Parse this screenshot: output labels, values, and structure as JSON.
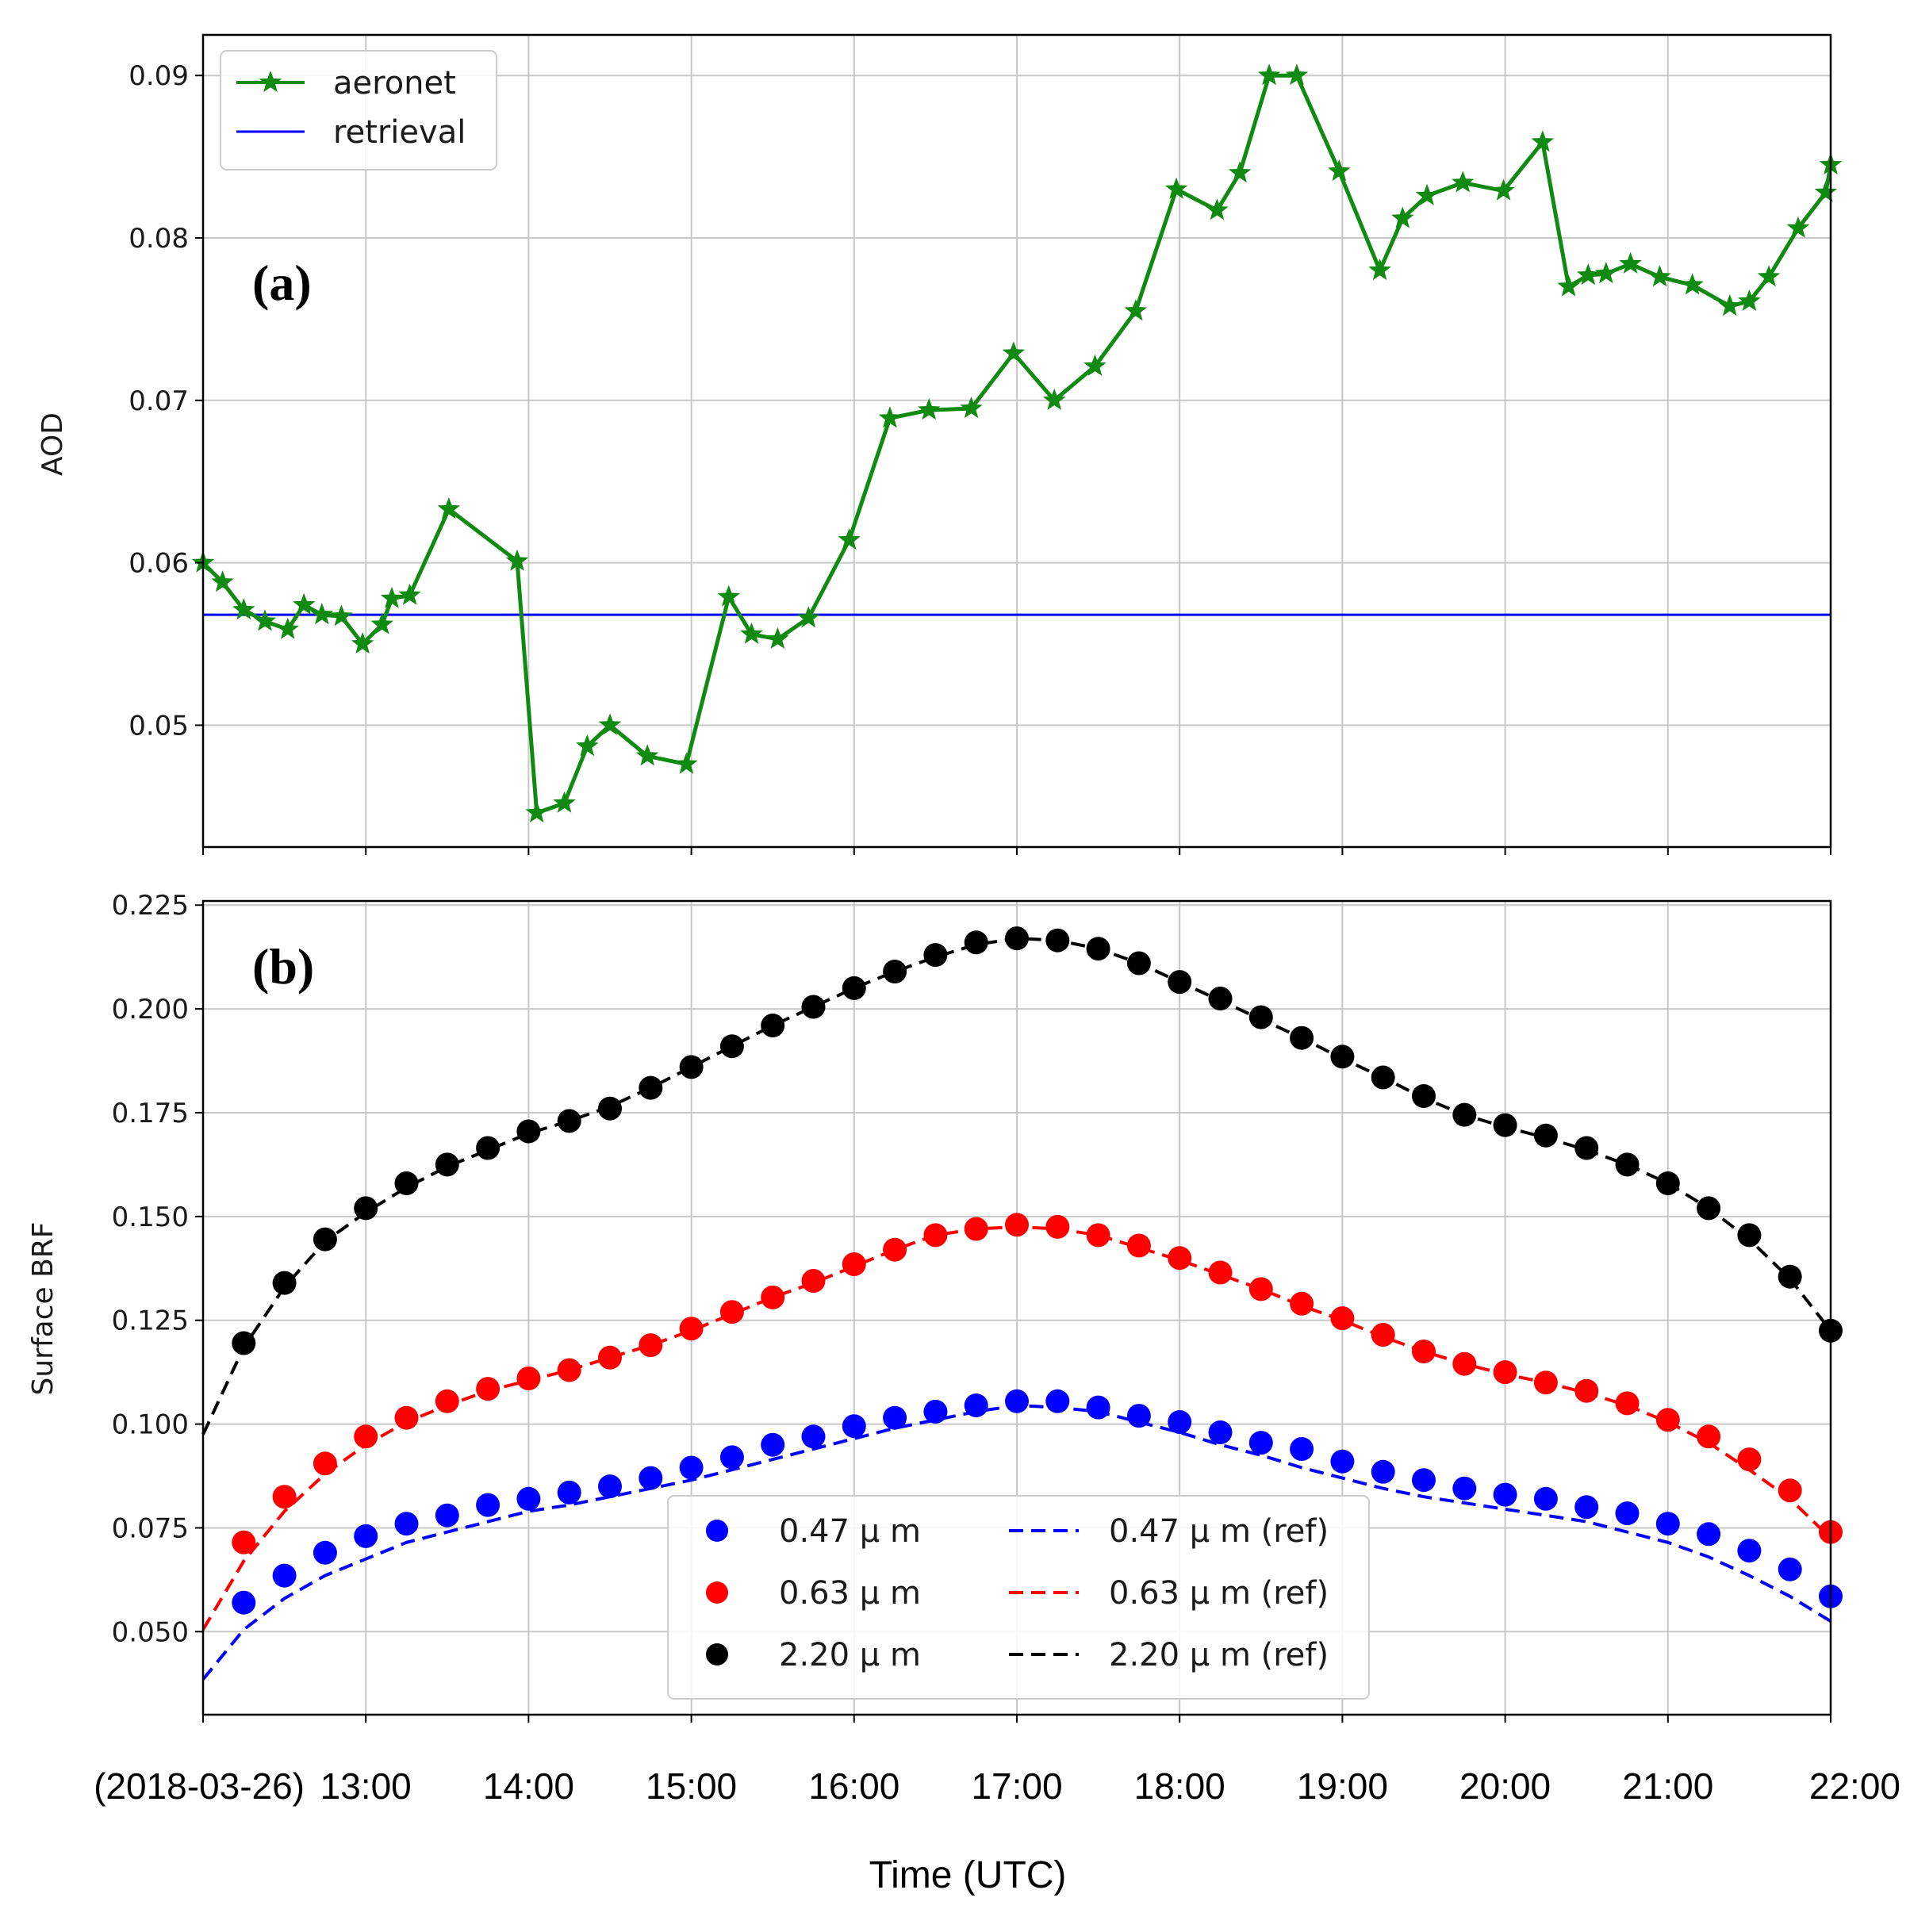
{
  "chart_data": [
    {
      "type": "line",
      "panel_label": "(a)",
      "ylabel": "AOD",
      "xlabel": "",
      "ylim": [
        0.0425,
        0.0925
      ],
      "xlim": [
        12.0,
        22.0
      ],
      "yticks": [
        0.05,
        0.06,
        0.07,
        0.08,
        0.09
      ],
      "ytick_labels": [
        "0.05",
        "0.06",
        "0.07",
        "0.08",
        "0.09"
      ],
      "grid": true,
      "legend": "top-left",
      "series": [
        {
          "name": "aeronet",
          "color": "#118a11",
          "marker": "star",
          "x": [
            12.0,
            12.12,
            12.25,
            12.38,
            12.52,
            12.62,
            12.73,
            12.85,
            12.98,
            13.1,
            13.16,
            13.27,
            13.51,
            13.93,
            14.05,
            14.22,
            14.36,
            14.5,
            14.73,
            14.97,
            15.23,
            15.37,
            15.53,
            15.72,
            15.97,
            16.22,
            16.46,
            16.72,
            16.98,
            17.23,
            17.48,
            17.73,
            17.98,
            18.23,
            18.37,
            18.55,
            18.72,
            18.98,
            19.23,
            19.37,
            19.52,
            19.74,
            19.99,
            20.23,
            20.39,
            20.51,
            20.62,
            20.77,
            20.95,
            21.15,
            21.38,
            21.5,
            21.62,
            21.8,
            21.97,
            22.0
          ],
          "y": [
            0.06,
            0.0588,
            0.0571,
            0.0564,
            0.0559,
            0.0574,
            0.0568,
            0.0567,
            0.055,
            0.0562,
            0.0578,
            0.058,
            0.0633,
            0.0601,
            0.0446,
            0.0452,
            0.0487,
            0.05,
            0.0481,
            0.0476,
            0.0579,
            0.0556,
            0.0553,
            0.0566,
            0.0614,
            0.0689,
            0.0694,
            0.0695,
            0.0729,
            0.07,
            0.0721,
            0.0755,
            0.083,
            0.0817,
            0.084,
            0.09,
            0.09,
            0.0841,
            0.078,
            0.0812,
            0.0826,
            0.0834,
            0.0829,
            0.0859,
            0.077,
            0.0777,
            0.0778,
            0.0784,
            0.0776,
            0.0771,
            0.0758,
            0.0761,
            0.0776,
            0.0806,
            0.0828,
            0.0845
          ]
        },
        {
          "name": "retrieval",
          "color": "#0000ff",
          "x": [
            12.0,
            22.0
          ],
          "y": [
            0.0568,
            0.0568
          ]
        }
      ]
    },
    {
      "type": "scatter",
      "panel_label": "(b)",
      "ylabel": "Surface BRF",
      "xlabel": "Time (UTC)",
      "ylim": [
        0.03,
        0.226
      ],
      "xlim": [
        12.0,
        22.0
      ],
      "yticks": [
        0.05,
        0.075,
        0.1,
        0.125,
        0.15,
        0.175,
        0.2,
        0.225
      ],
      "ytick_labels": [
        "0.050",
        "0.075",
        "0.100",
        "0.125",
        "0.150",
        "0.175",
        "0.200",
        "0.225"
      ],
      "xticks": [
        12.0,
        13.0,
        14.0,
        15.0,
        16.0,
        17.0,
        18.0,
        19.0,
        20.0,
        21.0,
        22.0
      ],
      "xtick_labels": [
        "(2018-03-26)",
        "13:00",
        "14:00",
        "15:00",
        "16:00",
        "17:00",
        "18:00",
        "19:00",
        "20:00",
        "21:00",
        "22:00"
      ],
      "grid": true,
      "legend": "lower-center",
      "x_points": [
        12.25,
        12.5,
        12.75,
        13.0,
        13.25,
        13.5,
        13.75,
        14.0,
        14.25,
        14.5,
        14.75,
        15.0,
        15.25,
        15.5,
        15.75,
        16.0,
        16.25,
        16.5,
        16.75,
        17.0,
        17.25,
        17.5,
        17.75,
        18.0,
        18.25,
        18.5,
        18.75,
        19.0,
        19.25,
        19.5,
        19.75,
        20.0,
        20.25,
        20.5,
        20.75,
        21.0,
        21.25,
        21.5,
        21.75,
        22.0
      ],
      "x_ref": [
        12.0,
        12.25,
        12.5,
        12.75,
        13.0,
        13.25,
        13.5,
        13.75,
        14.0,
        14.25,
        14.5,
        14.75,
        15.0,
        15.25,
        15.5,
        15.75,
        16.0,
        16.25,
        16.5,
        16.75,
        17.0,
        17.25,
        17.5,
        17.75,
        18.0,
        18.25,
        18.5,
        18.75,
        19.0,
        19.25,
        19.5,
        19.75,
        20.0,
        20.25,
        20.5,
        20.75,
        21.0,
        21.25,
        21.5,
        21.75,
        22.0
      ],
      "series": [
        {
          "name": "0.47 μ m",
          "color": "#0000ff",
          "style": "points",
          "y": [
            0.057,
            0.0635,
            0.069,
            0.073,
            0.076,
            0.078,
            0.0805,
            0.082,
            0.0835,
            0.085,
            0.087,
            0.0895,
            0.092,
            0.095,
            0.097,
            0.0995,
            0.1015,
            0.103,
            0.1045,
            0.1055,
            0.1055,
            0.104,
            0.102,
            0.1005,
            0.098,
            0.0955,
            0.094,
            0.091,
            0.0885,
            0.0865,
            0.0845,
            0.083,
            0.082,
            0.08,
            0.0785,
            0.076,
            0.0735,
            0.0695,
            0.065,
            0.0585
          ]
        },
        {
          "name": "0.63 μ m",
          "color": "#ff0000",
          "style": "points",
          "y": [
            0.0715,
            0.0825,
            0.0905,
            0.097,
            0.1015,
            0.1055,
            0.1085,
            0.111,
            0.113,
            0.116,
            0.119,
            0.123,
            0.127,
            0.1305,
            0.1345,
            0.1385,
            0.142,
            0.1455,
            0.147,
            0.148,
            0.1475,
            0.1455,
            0.143,
            0.14,
            0.1365,
            0.1325,
            0.129,
            0.1255,
            0.1215,
            0.1175,
            0.1145,
            0.1125,
            0.11,
            0.108,
            0.105,
            0.101,
            0.097,
            0.0915,
            0.084,
            0.074
          ]
        },
        {
          "name": "2.20 μ m",
          "color": "#000000",
          "style": "points",
          "y": [
            0.1195,
            0.134,
            0.1445,
            0.152,
            0.158,
            0.1625,
            0.1665,
            0.1705,
            0.173,
            0.176,
            0.181,
            0.186,
            0.191,
            0.196,
            0.2005,
            0.205,
            0.209,
            0.213,
            0.216,
            0.217,
            0.2165,
            0.2145,
            0.211,
            0.2065,
            0.2025,
            0.198,
            0.193,
            0.1885,
            0.1835,
            0.179,
            0.1745,
            0.172,
            0.1695,
            0.1665,
            0.1625,
            0.158,
            0.152,
            0.1455,
            0.1355,
            0.1225
          ]
        },
        {
          "name": "0.47 μ m (ref)",
          "color": "#0000ff",
          "style": "dashed",
          "y": [
            0.0385,
            0.0505,
            0.058,
            0.0635,
            0.0675,
            0.0715,
            0.074,
            0.0765,
            0.079,
            0.0805,
            0.0825,
            0.0845,
            0.0865,
            0.089,
            0.0915,
            0.094,
            0.0965,
            0.099,
            0.101,
            0.103,
            0.1045,
            0.104,
            0.103,
            0.1005,
            0.098,
            0.095,
            0.0925,
            0.0895,
            0.087,
            0.0845,
            0.0825,
            0.081,
            0.0795,
            0.078,
            0.0765,
            0.074,
            0.0715,
            0.068,
            0.0635,
            0.0585,
            0.0525
          ]
        },
        {
          "name": "0.63 μ m (ref)",
          "color": "#ff0000",
          "style": "dashed",
          "y": [
            0.0505,
            0.067,
            0.079,
            0.088,
            0.095,
            0.1005,
            0.1045,
            0.108,
            0.1105,
            0.113,
            0.116,
            0.119,
            0.1225,
            0.1265,
            0.1305,
            0.134,
            0.138,
            0.142,
            0.1455,
            0.147,
            0.1475,
            0.147,
            0.1455,
            0.1425,
            0.1395,
            0.136,
            0.1325,
            0.1285,
            0.125,
            0.121,
            0.1175,
            0.1145,
            0.112,
            0.11,
            0.1075,
            0.1045,
            0.1005,
            0.0955,
            0.089,
            0.082,
            0.0725
          ]
        },
        {
          "name": "2.20 μ m (ref)",
          "color": "#000000",
          "style": "dashed",
          "y": [
            0.0975,
            0.1185,
            0.133,
            0.144,
            0.151,
            0.157,
            0.162,
            0.166,
            0.17,
            0.173,
            0.1765,
            0.181,
            0.186,
            0.191,
            0.196,
            0.2005,
            0.205,
            0.209,
            0.2125,
            0.2155,
            0.217,
            0.2165,
            0.2145,
            0.211,
            0.2065,
            0.202,
            0.1975,
            0.193,
            0.188,
            0.1835,
            0.1785,
            0.1745,
            0.1715,
            0.169,
            0.166,
            0.1625,
            0.158,
            0.152,
            0.1445,
            0.135,
            0.1225
          ]
        }
      ]
    }
  ]
}
